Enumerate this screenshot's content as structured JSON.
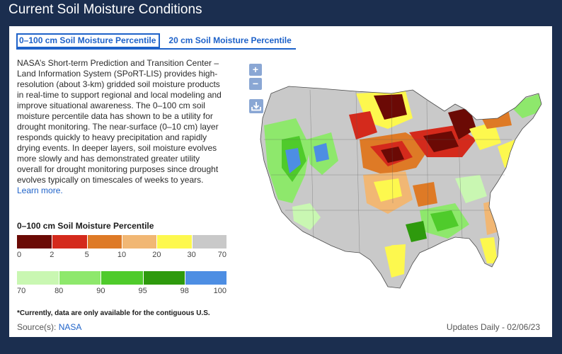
{
  "page": {
    "title": "Current Soil Moisture Conditions"
  },
  "tabs": [
    {
      "label": "0–100 cm Soil Moisture Percentile",
      "active": true
    },
    {
      "label": "20 cm Soil Moisture Percentile",
      "active": false
    }
  ],
  "description": {
    "text": "NASA’s Short-term Prediction and Transition Center – Land Information System (SPoRT-LIS) provides high-resolution (about 3-km) gridded soil moisture products in real-time to support regional and local modeling and improve situational awareness. The 0–100 cm soil moisture percentile data has shown to be a utility for drought monitoring. The near-surface (0–10 cm) layer responds quickly to heavy precipitation and rapidly drying events. In deeper layers, soil moisture evolves more slowly and has demonstrated greater utility overall for drought monitoring purposes since drought evolves typically on timescales of weeks to years.",
    "link_label": "Learn more."
  },
  "legend": {
    "title": "0–100 cm Soil Moisture Percentile",
    "dry_colors": [
      "#6b0a05",
      "#d42a1c",
      "#de7a26",
      "#f1b774",
      "#fdf84e",
      "#c9c9c9"
    ],
    "dry_ticks": [
      "0",
      "2",
      "5",
      "10",
      "20",
      "30",
      "70"
    ],
    "wet_colors": [
      "#c9f7b2",
      "#8ee86c",
      "#4fcb2b",
      "#2e9a0d",
      "#4d8ee3"
    ],
    "wet_ticks": [
      "70",
      "80",
      "90",
      "95",
      "98",
      "100"
    ]
  },
  "controls": {
    "zoom_in": "+",
    "zoom_out": "−",
    "download_icon": "download-icon"
  },
  "footer": {
    "note": "*Currently, data are only available for the contiguous U.S.",
    "source_label": "Source(s):",
    "source_link": "NASA",
    "updates": "Updates Daily - 02/06/23"
  }
}
